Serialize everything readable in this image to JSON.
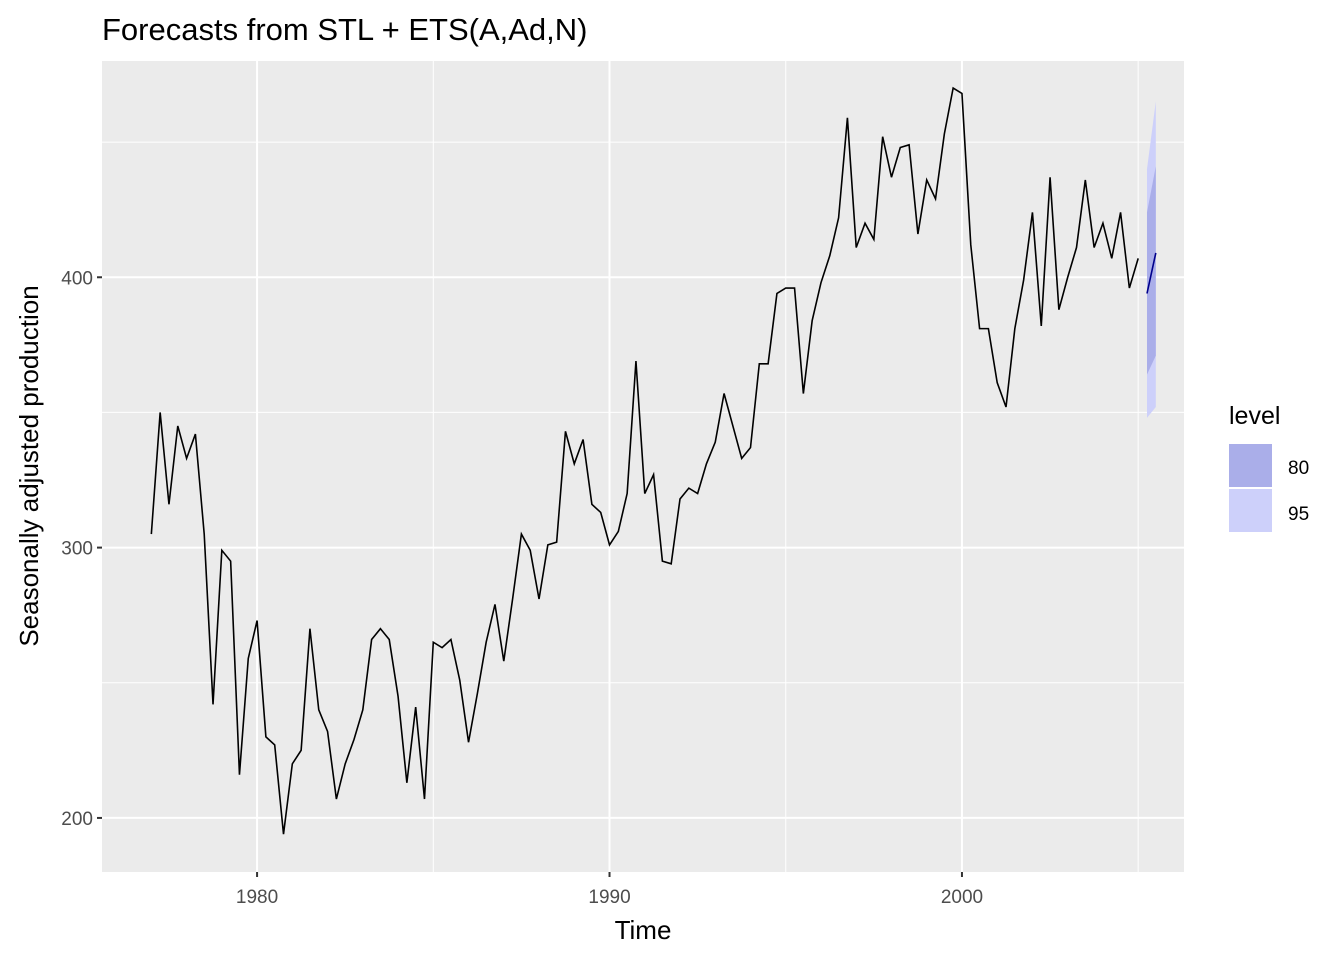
{
  "chart_data": {
    "type": "line",
    "title": "Forecasts from STL +  ETS(A,Ad,N)",
    "xlabel": "Time",
    "ylabel": "Seasonally adjusted production",
    "xlim": [
      1975.6,
      2006.3
    ],
    "ylim": [
      180,
      480
    ],
    "x_ticks": [
      1980,
      1990,
      2000
    ],
    "y_ticks": [
      200,
      300,
      400
    ],
    "grid": true,
    "legend": {
      "title": "level",
      "position": "right",
      "entries": [
        {
          "label": "80",
          "color": "#aaaee9"
        },
        {
          "label": "95",
          "color": "#cdd0fa"
        }
      ]
    },
    "series": [
      {
        "type": "line",
        "color": "#000000",
        "start": 1977.0,
        "frequency": 4,
        "values": [
          305,
          350,
          316,
          345,
          333,
          342,
          305,
          242,
          299,
          295,
          216,
          259,
          273,
          230,
          227,
          194,
          220,
          225,
          270,
          240,
          232,
          207,
          220,
          229,
          240,
          266,
          270,
          266,
          245,
          213,
          241,
          207,
          265,
          263,
          266,
          251,
          228,
          246,
          265,
          279,
          258,
          281,
          305,
          299,
          281,
          301,
          302,
          343,
          331,
          340,
          316,
          313,
          301,
          306,
          320,
          369,
          320,
          327,
          295,
          294,
          318,
          322,
          320,
          331,
          339,
          357,
          345,
          333,
          337,
          368,
          368,
          394,
          396,
          396,
          357,
          384,
          398,
          408,
          422,
          459,
          411,
          420,
          414,
          452,
          437,
          448,
          449,
          416,
          436,
          429,
          453,
          470,
          468,
          412,
          381,
          381,
          361,
          352,
          381,
          399,
          424,
          382,
          437,
          388,
          400,
          411,
          436,
          411,
          420,
          407,
          424,
          396,
          407
        ]
      },
      {
        "type": "forecast",
        "color": "#00008b",
        "x": [
          2005.25,
          2005.5
        ],
        "mean": [
          394,
          409
        ],
        "lo80": [
          364,
          371
        ],
        "hi80": [
          424,
          441
        ],
        "lo95": [
          348,
          352
        ],
        "hi95": [
          440,
          465
        ]
      }
    ]
  }
}
